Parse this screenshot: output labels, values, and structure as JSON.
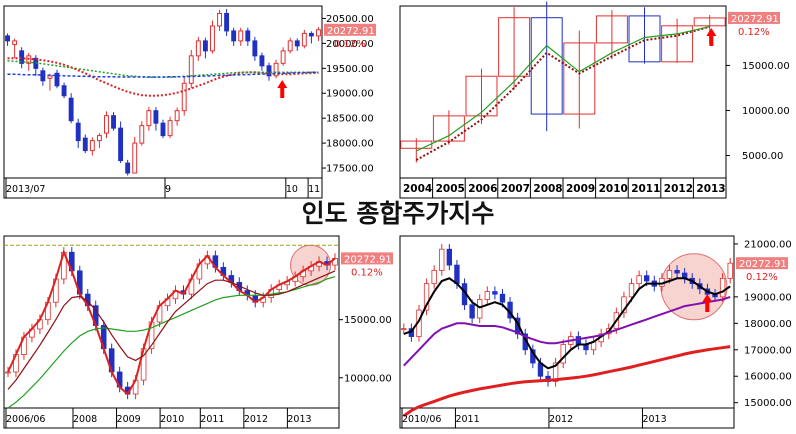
{
  "page_title": "인도 종합주가지수",
  "colors": {
    "up": "#e03030",
    "down": "#2030c0",
    "badge_bg": "#f08080",
    "badge_fg": "#ffffff",
    "pct_fg": "#e02020",
    "ma_red": "#e02020",
    "ma_green": "#20a020",
    "ma_blue": "#2040e0",
    "ma_dark": "#901010",
    "ma_black": "#000000",
    "ma_purple": "#8010b0",
    "arrow": "#ff0000",
    "circle_fill": "#f6c9c4",
    "circle_stroke": "#e07070",
    "dash_olive": "#a0a020"
  },
  "chart_data": [
    {
      "id": "daily",
      "type": "candlestick",
      "period": "daily",
      "x_tick_labels": [
        "2013/07",
        "9",
        "10",
        "11"
      ],
      "y_tick_labels": [
        "20500.00",
        "20000.00",
        "19500.00",
        "19000.00",
        "18500.00",
        "18000.00",
        "17500.00"
      ],
      "ylim": [
        17300,
        20750
      ],
      "last_price": "20272.91",
      "change_pct": "0.12%",
      "candles": [
        [
          20150,
          20050,
          19950
        ],
        [
          19980,
          20050,
          19700
        ],
        [
          19850,
          19600,
          19500
        ],
        [
          19600,
          19750,
          19450
        ],
        [
          19700,
          19500,
          19350
        ],
        [
          19450,
          19250,
          19150
        ],
        [
          19300,
          19350,
          19050
        ],
        [
          19400,
          19150,
          19100
        ],
        [
          19150,
          18950,
          18900
        ],
        [
          18900,
          18450,
          18400
        ],
        [
          18400,
          18050,
          17900
        ],
        [
          18100,
          17850,
          17800
        ],
        [
          17850,
          18050,
          17750
        ],
        [
          18050,
          18150,
          17900
        ],
        [
          18200,
          18550,
          18100
        ],
        [
          18550,
          18300,
          18250
        ],
        [
          18300,
          17650,
          17600
        ],
        [
          17600,
          17400,
          17350
        ],
        [
          17400,
          18000,
          17400
        ],
        [
          18000,
          18350,
          17950
        ],
        [
          18350,
          18650,
          18250
        ],
        [
          18650,
          18400,
          18250
        ],
        [
          18400,
          18150,
          18100
        ],
        [
          18150,
          18450,
          18100
        ],
        [
          18450,
          18650,
          18350
        ],
        [
          18650,
          19200,
          18550
        ],
        [
          19200,
          19750,
          19100
        ],
        [
          19750,
          20050,
          19650
        ],
        [
          20050,
          19850,
          19700
        ],
        [
          19850,
          20350,
          19800
        ],
        [
          20350,
          20600,
          20250
        ],
        [
          20600,
          20250,
          20150
        ],
        [
          20250,
          20050,
          19950
        ],
        [
          20050,
          20250,
          19950
        ],
        [
          20250,
          20050,
          19950
        ],
        [
          20050,
          19750,
          19650
        ],
        [
          19750,
          19550,
          19450
        ],
        [
          19550,
          19350,
          19250
        ],
        [
          19350,
          19600,
          19300
        ],
        [
          19600,
          19850,
          19550
        ],
        [
          19850,
          20050,
          19800
        ],
        [
          20050,
          19950,
          19850
        ],
        [
          19950,
          20200,
          19900
        ],
        [
          20200,
          20150,
          20000
        ],
        [
          20150,
          20272.91,
          20050
        ]
      ],
      "ma_dotted_red": [
        19700,
        19700,
        19700,
        19690,
        19680,
        19660,
        19640,
        19610,
        19570,
        19520,
        19460,
        19400,
        19330,
        19260,
        19200,
        19140,
        19080,
        19030,
        18990,
        18960,
        18950,
        18950,
        18960,
        18980,
        19010,
        19050,
        19100,
        19150,
        19200,
        19260,
        19310,
        19350,
        19380,
        19410,
        19420,
        19420,
        19410,
        19400,
        19390,
        19380,
        19380,
        19390,
        19400,
        19400,
        19410
      ],
      "ma_dotted_green": [
        19650,
        19640,
        19630,
        19620,
        19610,
        19590,
        19570,
        19550,
        19530,
        19510,
        19490,
        19470,
        19450,
        19430,
        19410,
        19390,
        19370,
        19350,
        19340,
        19330,
        19320,
        19320,
        19320,
        19320,
        19330,
        19340,
        19350,
        19360,
        19370,
        19380,
        19390,
        19400,
        19410,
        19420,
        19420,
        19420,
        19420,
        19420,
        19420,
        19420,
        19420,
        19420,
        19420,
        19420,
        19420
      ],
      "ma_dotted_blue": [
        19380,
        19380,
        19375,
        19370,
        19370,
        19365,
        19360,
        19355,
        19350,
        19345,
        19340,
        19340,
        19335,
        19330,
        19330,
        19330,
        19325,
        19325,
        19325,
        19325,
        19325,
        19325,
        19325,
        19330,
        19330,
        19330,
        19335,
        19340,
        19345,
        19350,
        19355,
        19360,
        19365,
        19370,
        19375,
        19380,
        19385,
        19390,
        19395,
        19400,
        19405,
        19410,
        19415,
        19420,
        19420
      ]
    },
    {
      "id": "yearly",
      "type": "candlestick",
      "period": "yearly",
      "x_tick_labels": [
        "2004",
        "2005",
        "2006",
        "2007",
        "2008",
        "2009",
        "2010",
        "2011",
        "2012",
        "2013"
      ],
      "y_tick_labels": [
        "20272.91",
        "15000.00",
        "10000.00",
        "5000.00"
      ],
      "y_tick_values": [
        20272.91,
        15000,
        10000,
        5000
      ],
      "ylim": [
        2500,
        21600
      ],
      "last_price": "20272.91",
      "change_pct": "0.12%",
      "candles": [
        [
          5800,
          6600,
          4200
        ],
        [
          6600,
          9400,
          6200
        ],
        [
          9400,
          13800,
          8500
        ],
        [
          13800,
          20300,
          12300
        ],
        [
          20300,
          9600,
          7700
        ],
        [
          9600,
          17500,
          8000
        ],
        [
          17500,
          20500,
          15700
        ],
        [
          20500,
          15400,
          15200
        ],
        [
          15400,
          19400,
          15300
        ],
        [
          19400,
          20272.91,
          17500
        ]
      ],
      "ma_green": [
        5500,
        7200,
        9800,
        13200,
        17200,
        14300,
        16400,
        18100,
        18500,
        19300
      ],
      "ma_dotted_dark": [
        4500,
        6500,
        9000,
        12500,
        16400,
        14100,
        16000,
        17800,
        18300,
        19300
      ]
    },
    {
      "id": "weekly",
      "type": "candlestick",
      "period": "weekly",
      "x_tick_labels": [
        "2006/06",
        "2008",
        "2009",
        "2010",
        "2011",
        "2012",
        "2013"
      ],
      "y_tick_labels": [
        "20272.91",
        "15000.00",
        "10000.00"
      ],
      "y_tick_values": [
        20272.91,
        15000,
        10000
      ],
      "ylim": [
        7400,
        22200
      ],
      "last_price": "20272.91",
      "change_pct": "0.12%",
      "price_path": [
        10500,
        12000,
        13500,
        14200,
        15000,
        16500,
        18500,
        20800,
        19200,
        17200,
        16200,
        14500,
        12500,
        10500,
        9200,
        8600,
        9800,
        12500,
        14800,
        16200,
        16800,
        17500,
        17200,
        18500,
        19800,
        20500,
        19500,
        18800,
        18200,
        17500,
        17100,
        16500,
        16900,
        17600,
        18000,
        18300,
        18700,
        19200,
        19600,
        20000,
        19700,
        20272.91
      ],
      "ma_dark": [
        9000,
        9800,
        10800,
        11800,
        12800,
        13900,
        15000,
        16200,
        16900,
        17000,
        16600,
        15800,
        14800,
        13700,
        12700,
        11800,
        11500,
        11900,
        12800,
        13800,
        14800,
        15700,
        16300,
        16900,
        17500,
        18100,
        18400,
        18400,
        18200,
        17900,
        17600,
        17300,
        17100,
        17100,
        17200,
        17400,
        17700,
        18000,
        18300,
        18600,
        18900,
        19200
      ],
      "ma_green": [
        7400,
        7900,
        8500,
        9200,
        9900,
        10700,
        11500,
        12300,
        13000,
        13600,
        14000,
        14200,
        14300,
        14200,
        14100,
        14000,
        14000,
        14100,
        14300,
        14600,
        14900,
        15200,
        15500,
        15800,
        16100,
        16400,
        16700,
        16900,
        17000,
        17100,
        17100,
        17100,
        17100,
        17200,
        17300,
        17400,
        17600,
        17800,
        18000,
        18200,
        18500,
        18700
      ],
      "ref_line": 21400
    },
    {
      "id": "daily_long",
      "type": "candlestick",
      "period": "daily",
      "x_tick_labels": [
        "2010/06",
        "2011",
        "2012",
        "2013"
      ],
      "y_tick_labels": [
        "21000.00",
        "20272.91",
        "19000.00",
        "18000.00",
        "17000.00",
        "16000.00",
        "15000.00"
      ],
      "y_tick_values": [
        21000,
        20272.91,
        19000,
        18000,
        17000,
        16000,
        15000
      ],
      "ylim": [
        14800,
        21300
      ],
      "last_price": "20272.91",
      "change_pct": "0.12%",
      "price_path": [
        17800,
        17500,
        18500,
        19500,
        20000,
        20800,
        20200,
        19500,
        18700,
        18200,
        18900,
        19200,
        19100,
        18800,
        18200,
        17600,
        17000,
        16500,
        16000,
        15800,
        16500,
        17200,
        17500,
        17200,
        17000,
        17300,
        17600,
        17800,
        18400,
        19000,
        19500,
        19800,
        19600,
        19400,
        19700,
        20000,
        19900,
        19700,
        19500,
        19300,
        19100,
        19000,
        19700,
        20272.91
      ],
      "ma_black": [
        17600,
        17700,
        18100,
        18700,
        19200,
        19600,
        19700,
        19500,
        19200,
        18800,
        18600,
        18700,
        18800,
        18700,
        18400,
        18000,
        17400,
        16900,
        16500,
        16300,
        16400,
        16700,
        17000,
        17200,
        17200,
        17300,
        17500,
        17700,
        18100,
        18500,
        18900,
        19300,
        19500,
        19500,
        19500,
        19600,
        19700,
        19700,
        19600,
        19400,
        19200,
        19100,
        19200,
        19400
      ],
      "ma_purple": [
        16400,
        16700,
        17000,
        17300,
        17600,
        17800,
        17900,
        18000,
        18000,
        17950,
        17900,
        17900,
        17900,
        17850,
        17750,
        17650,
        17500,
        17400,
        17300,
        17250,
        17250,
        17300,
        17350,
        17400,
        17450,
        17500,
        17550,
        17650,
        17750,
        17850,
        17950,
        18050,
        18150,
        18250,
        18350,
        18450,
        18550,
        18650,
        18700,
        18750,
        18800,
        18850,
        18900,
        19000
      ],
      "ma_red": [
        14500,
        14700,
        14850,
        14950,
        15050,
        15150,
        15250,
        15330,
        15400,
        15460,
        15520,
        15570,
        15620,
        15670,
        15720,
        15760,
        15790,
        15810,
        15830,
        15850,
        15870,
        15900,
        15930,
        15960,
        16000,
        16050,
        16110,
        16170,
        16230,
        16290,
        16350,
        16420,
        16490,
        16560,
        16630,
        16700,
        16770,
        16840,
        16900,
        16950,
        17000,
        17040,
        17080,
        17120
      ]
    }
  ]
}
